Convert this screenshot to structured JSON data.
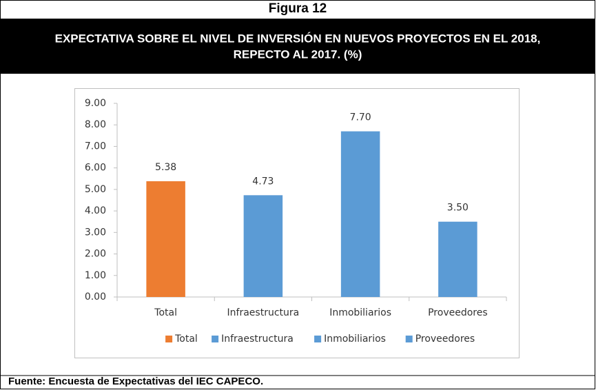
{
  "figure_label": "Figura 12",
  "header_title": [
    "EXPECTATIVA SOBRE EL NIVEL DE INVERSIÓN EN NUEVOS PROYECTOS EN EL 2018,",
    "REPECTO AL 2017. (%)"
  ],
  "source": "Fuente: Encuesta de Expectativas del IEC CAPECO.",
  "chart_data": {
    "type": "bar",
    "categories": [
      "Total",
      "Infraestructura",
      "Inmobiliarios",
      "Proveedores"
    ],
    "values": [
      5.38,
      4.73,
      7.7,
      3.5
    ],
    "value_labels": [
      "5.38",
      "4.73",
      "7.70",
      "3.50"
    ],
    "colors": [
      "#ed7d31",
      "#5b9bd5",
      "#5b9bd5",
      "#5b9bd5"
    ],
    "ylim": [
      0,
      9
    ],
    "yticks": [
      {
        "value": 0,
        "label": "0.00"
      },
      {
        "value": 1,
        "label": "1.00"
      },
      {
        "value": 2,
        "label": "2.00"
      },
      {
        "value": 3,
        "label": "3.00"
      },
      {
        "value": 4,
        "label": "4.00"
      },
      {
        "value": 5,
        "label": "5.00"
      },
      {
        "value": 6,
        "label": "6.00"
      },
      {
        "value": 7,
        "label": "7.00"
      },
      {
        "value": 8,
        "label": "8.00"
      },
      {
        "value": 9,
        "label": "9.00"
      }
    ],
    "grid": false,
    "legend": "bottom"
  }
}
